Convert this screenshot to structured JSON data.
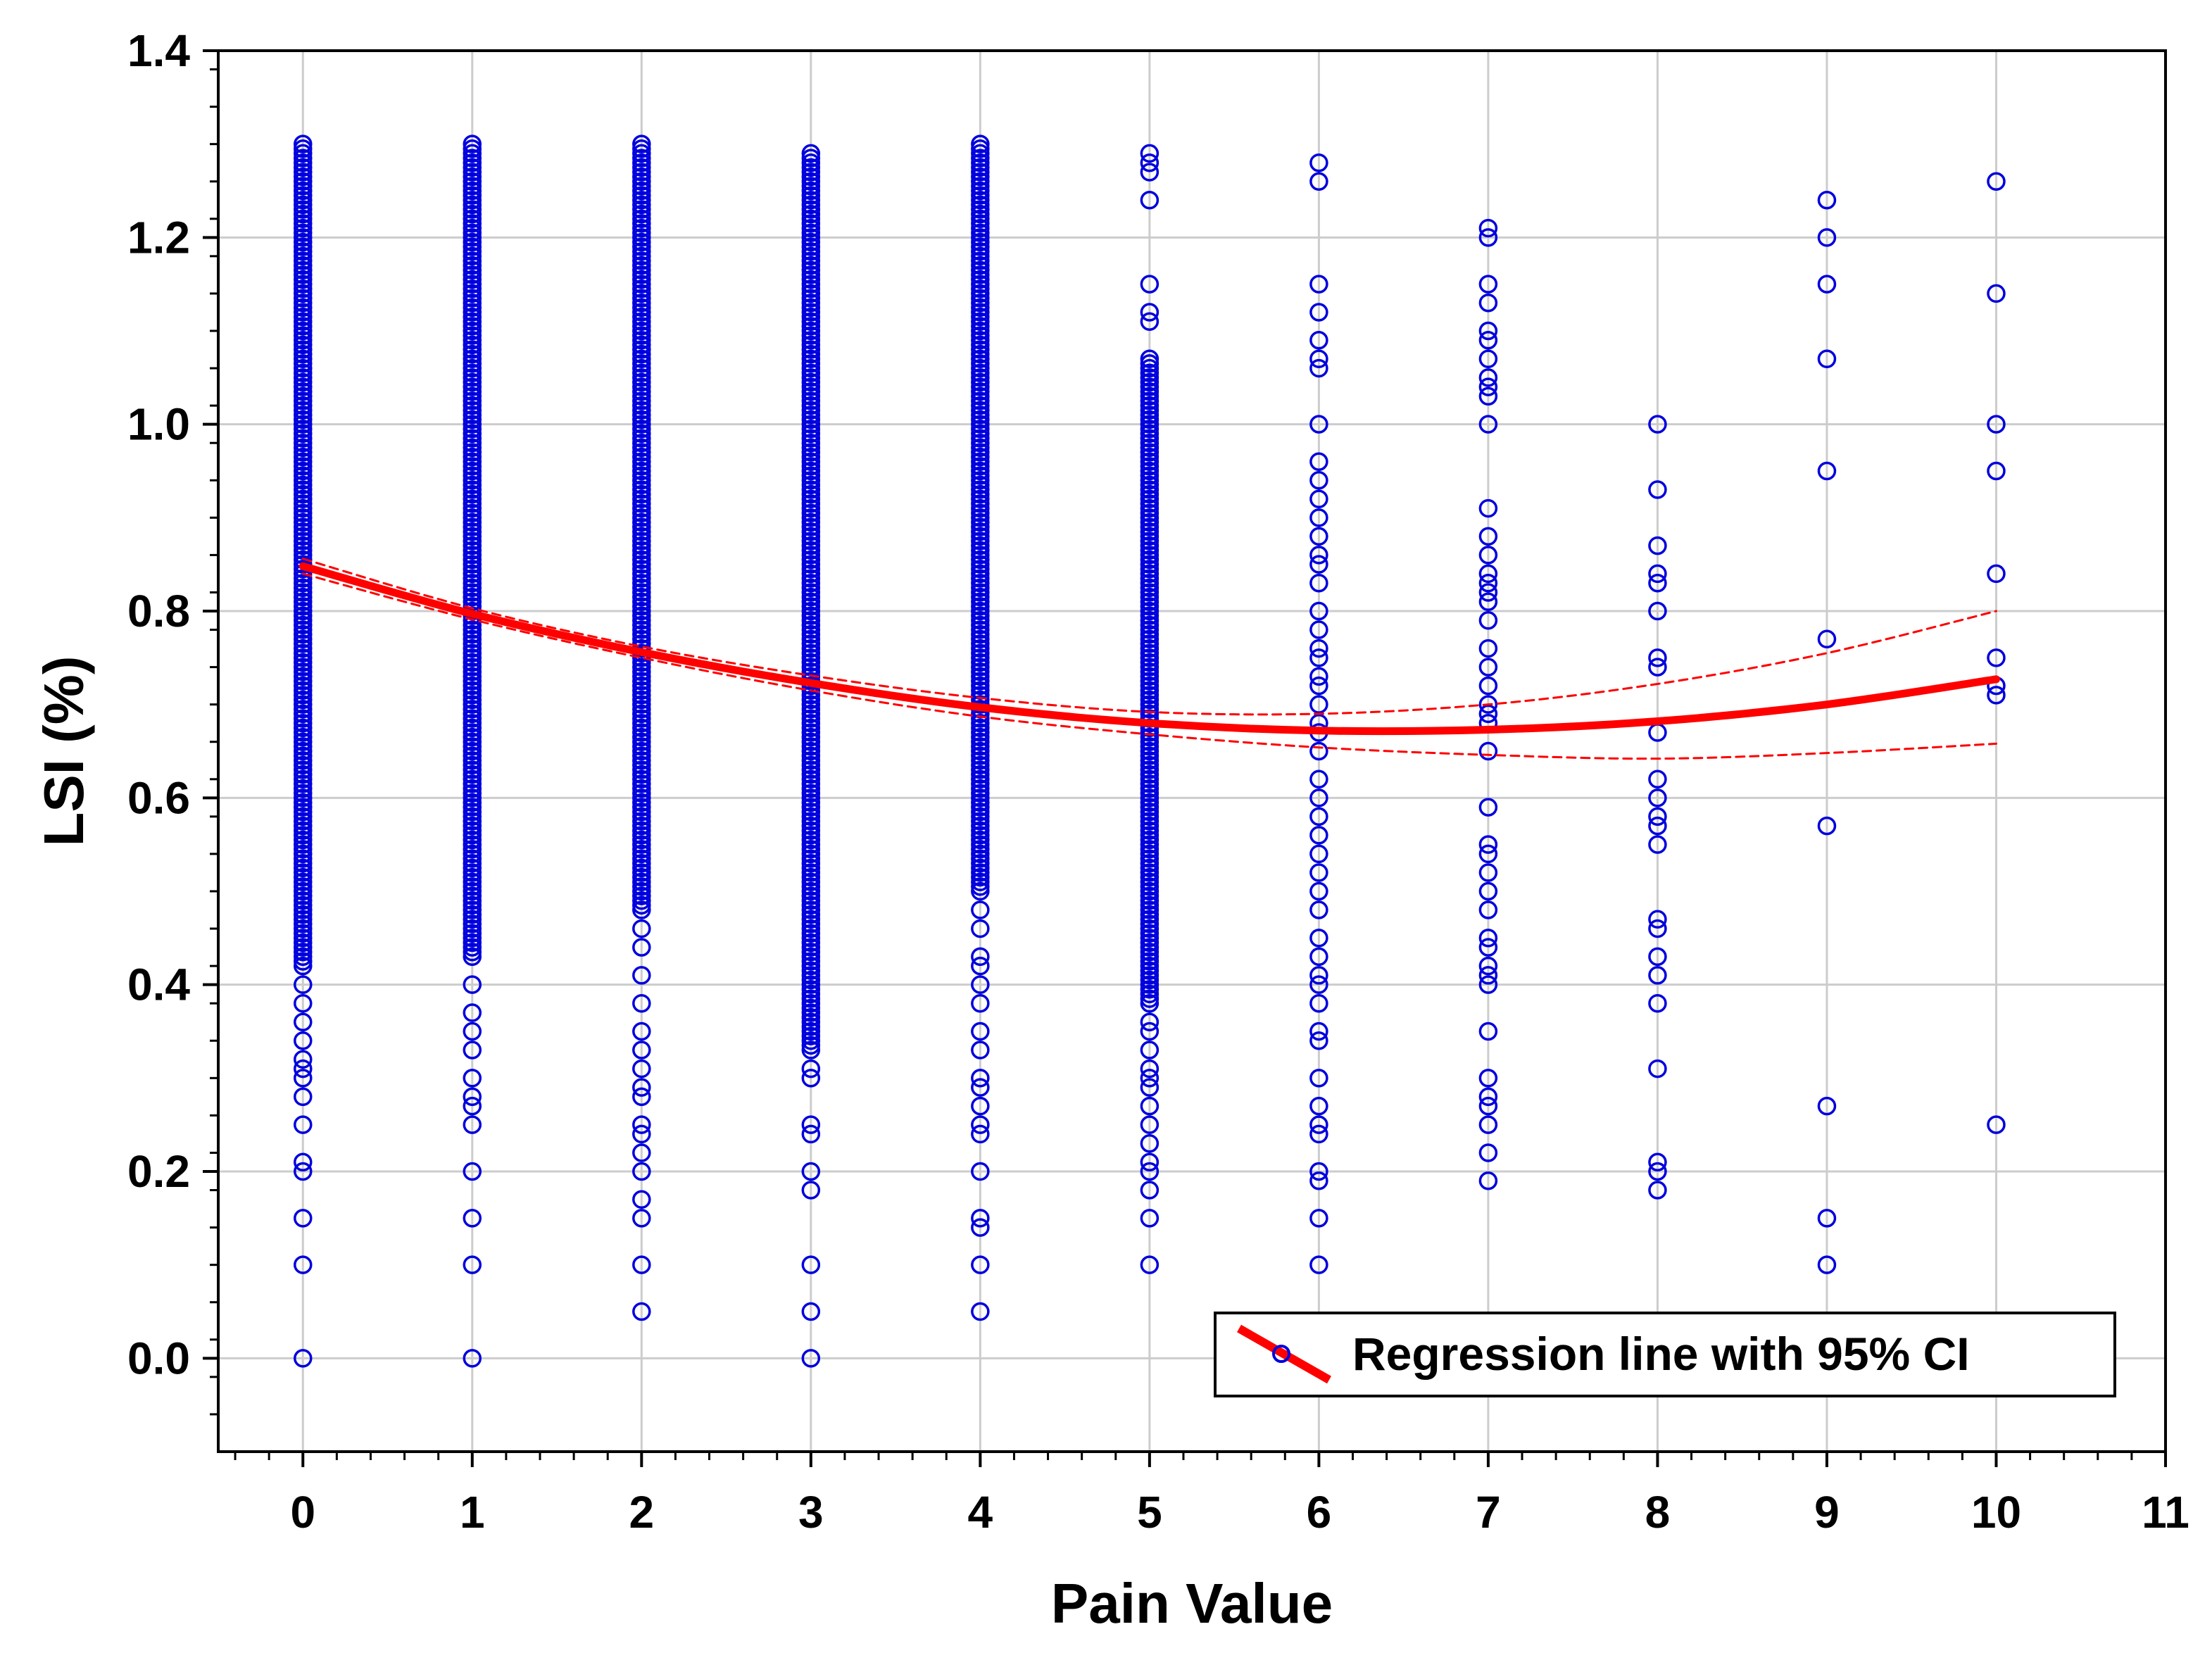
{
  "chart_data": {
    "type": "scatter",
    "title": "",
    "xlabel": "Pain Value",
    "ylabel": "LSI (%)",
    "xlim": [
      -0.5,
      11
    ],
    "ylim": [
      -0.1,
      1.4
    ],
    "x_ticks": [
      "0",
      "1",
      "2",
      "3",
      "4",
      "5",
      "6",
      "7",
      "8",
      "9",
      "10",
      "11"
    ],
    "y_ticks": [
      "0.0",
      "0.2",
      "0.4",
      "0.6",
      "0.8",
      "1.0",
      "1.2",
      "1.4"
    ],
    "grid": true,
    "legend": {
      "position": "bottom-right",
      "entries": [
        "Regression line with 95% CI"
      ]
    },
    "colors": {
      "points": "#0000dd",
      "regression": "#ff0000",
      "grid": "#cccccc"
    },
    "series": [
      {
        "name": "Observations",
        "kind": "scatter",
        "groups": [
          {
            "x": 0,
            "dense_range": [
              0.42,
              1.3
            ],
            "y": [
              0.4,
              0.38,
              0.36,
              0.34,
              0.32,
              0.31,
              0.3,
              0.28,
              0.25,
              0.21,
              0.2,
              0.15,
              0.1,
              0.0
            ]
          },
          {
            "x": 1,
            "dense_range": [
              0.43,
              1.3
            ],
            "y": [
              0.4,
              0.37,
              0.35,
              0.33,
              0.3,
              0.28,
              0.27,
              0.25,
              0.2,
              0.15,
              0.1,
              0.0
            ]
          },
          {
            "x": 2,
            "dense_range": [
              0.48,
              1.3
            ],
            "y": [
              0.46,
              0.44,
              0.41,
              0.38,
              0.35,
              0.33,
              0.31,
              0.29,
              0.28,
              0.25,
              0.24,
              0.22,
              0.2,
              0.17,
              0.15,
              0.1,
              0.05
            ]
          },
          {
            "x": 3,
            "dense_range": [
              0.33,
              1.29
            ],
            "y": [
              0.31,
              0.3,
              0.25,
              0.24,
              0.2,
              0.18,
              0.1,
              0.05,
              0.0
            ]
          },
          {
            "x": 4,
            "dense_range": [
              0.5,
              1.3
            ],
            "y": [
              0.48,
              0.46,
              0.43,
              0.42,
              0.4,
              0.38,
              0.35,
              0.33,
              0.3,
              0.29,
              0.27,
              0.25,
              0.24,
              0.2,
              0.15,
              0.14,
              0.1,
              0.05
            ]
          },
          {
            "x": 5,
            "dense_range": [
              0.38,
              1.07
            ],
            "y": [
              1.29,
              1.28,
              1.27,
              1.24,
              1.15,
              1.12,
              1.11,
              0.36,
              0.35,
              0.33,
              0.31,
              0.3,
              0.29,
              0.27,
              0.25,
              0.23,
              0.21,
              0.2,
              0.18,
              0.15,
              0.1
            ]
          },
          {
            "x": 6,
            "y": [
              1.28,
              1.26,
              1.15,
              1.12,
              1.09,
              1.07,
              1.06,
              1.0,
              0.96,
              0.94,
              0.92,
              0.9,
              0.88,
              0.86,
              0.85,
              0.83,
              0.8,
              0.78,
              0.76,
              0.75,
              0.73,
              0.72,
              0.7,
              0.68,
              0.67,
              0.65,
              0.62,
              0.6,
              0.58,
              0.56,
              0.54,
              0.52,
              0.5,
              0.48,
              0.45,
              0.43,
              0.41,
              0.4,
              0.38,
              0.35,
              0.34,
              0.3,
              0.27,
              0.25,
              0.24,
              0.2,
              0.19,
              0.15,
              0.1
            ]
          },
          {
            "x": 7,
            "y": [
              1.21,
              1.2,
              1.15,
              1.13,
              1.1,
              1.09,
              1.07,
              1.05,
              1.04,
              1.03,
              1.0,
              0.91,
              0.88,
              0.86,
              0.84,
              0.83,
              0.82,
              0.81,
              0.79,
              0.76,
              0.74,
              0.72,
              0.7,
              0.69,
              0.68,
              0.65,
              0.59,
              0.55,
              0.54,
              0.52,
              0.5,
              0.48,
              0.45,
              0.44,
              0.42,
              0.41,
              0.4,
              0.35,
              0.3,
              0.28,
              0.27,
              0.25,
              0.22,
              0.19
            ]
          },
          {
            "x": 8,
            "y": [
              1.0,
              0.93,
              0.87,
              0.84,
              0.83,
              0.8,
              0.75,
              0.74,
              0.67,
              0.62,
              0.6,
              0.58,
              0.57,
              0.55,
              0.47,
              0.46,
              0.43,
              0.41,
              0.38,
              0.31,
              0.21,
              0.2,
              0.18
            ]
          },
          {
            "x": 9,
            "y": [
              1.24,
              1.2,
              1.15,
              1.07,
              0.95,
              0.77,
              0.57,
              0.27,
              0.15,
              0.1
            ]
          },
          {
            "x": 10,
            "y": [
              1.26,
              1.14,
              1.0,
              0.95,
              0.84,
              0.75,
              0.72,
              0.71,
              0.25
            ]
          }
        ]
      },
      {
        "name": "Regression line",
        "kind": "line",
        "x": [
          0,
          1,
          2,
          3,
          4,
          5,
          6,
          7,
          8,
          9,
          10
        ],
        "y": [
          0.848,
          0.797,
          0.756,
          0.723,
          0.697,
          0.68,
          0.672,
          0.673,
          0.682,
          0.7,
          0.727
        ]
      },
      {
        "name": "Upper 95% CI",
        "kind": "line",
        "style": "dashed",
        "x": [
          0,
          1,
          2,
          3,
          4,
          5,
          6,
          7,
          8,
          9,
          10
        ],
        "y": [
          0.856,
          0.803,
          0.762,
          0.731,
          0.707,
          0.692,
          0.69,
          0.7,
          0.722,
          0.755,
          0.8
        ]
      },
      {
        "name": "Lower 95% CI",
        "kind": "line",
        "style": "dashed",
        "x": [
          0,
          1,
          2,
          3,
          4,
          5,
          6,
          7,
          8,
          9,
          10
        ],
        "y": [
          0.84,
          0.791,
          0.75,
          0.715,
          0.687,
          0.668,
          0.654,
          0.646,
          0.642,
          0.648,
          0.658
        ]
      }
    ]
  }
}
